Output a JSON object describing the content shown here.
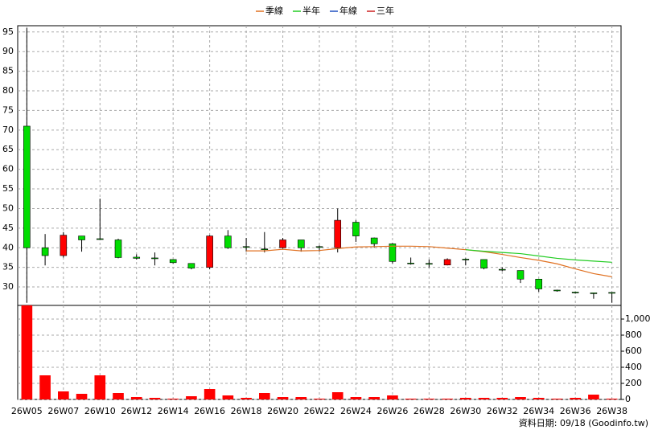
{
  "chart_data": {
    "type": "candlestick",
    "categories": [
      "26W05",
      null,
      "26W07",
      null,
      "26W10",
      null,
      "26W12",
      null,
      "26W14",
      null,
      "26W16",
      null,
      "26W18",
      null,
      "26W20",
      null,
      "26W22",
      null,
      "26W24",
      null,
      "26W26",
      null,
      "26W28",
      null,
      "26W30",
      null,
      "26W32",
      null,
      "26W34",
      null,
      "26W36",
      null,
      "26W38"
    ],
    "open": [
      71,
      40,
      38,
      43,
      42.3,
      42,
      37.6,
      37.4,
      37,
      36,
      35,
      43,
      40.3,
      39.7,
      40,
      42,
      40.3,
      40,
      46.5,
      42.5,
      41,
      36.1,
      36,
      35.6,
      37.1,
      37,
      34.5,
      34.2,
      32,
      29.2,
      28.7,
      28.5,
      28.6
    ],
    "high": [
      96,
      43.5,
      44,
      43,
      52.5,
      42.3,
      38.3,
      38.8,
      37,
      36,
      43.2,
      44.5,
      42.5,
      44,
      42.5,
      42,
      40.6,
      50,
      47,
      42.6,
      41.2,
      37.5,
      37,
      37.3,
      37.3,
      37,
      35,
      34.2,
      32,
      29.3,
      28.7,
      28.5,
      28.6
    ],
    "low": [
      26,
      35.5,
      37.5,
      39,
      42,
      37.3,
      37,
      35.5,
      36,
      34.5,
      34.5,
      39.7,
      39,
      38.8,
      39.8,
      39,
      39,
      38.8,
      41.5,
      40,
      36,
      35.7,
      35,
      35.5,
      35.5,
      34.5,
      34,
      31,
      28.8,
      28.8,
      28.3,
      27,
      26
    ],
    "close": [
      40,
      38,
      43.2,
      42,
      42.2,
      37.5,
      37.3,
      37.3,
      36.2,
      34.8,
      43,
      40,
      40.2,
      39.6,
      42,
      40,
      40.2,
      47,
      43,
      41,
      36.5,
      36,
      35.9,
      37,
      37,
      34.8,
      34.4,
      32,
      29.5,
      29,
      28.6,
      28.4,
      28.5
    ],
    "up_color": "#ff0000",
    "down_color": "#00dd00",
    "series": [
      {
        "name": "季線",
        "color": "#e07020",
        "values": [
          null,
          null,
          null,
          null,
          null,
          null,
          null,
          null,
          null,
          null,
          null,
          null,
          39.2,
          39.2,
          39.6,
          39.2,
          39.3,
          39.8,
          40.2,
          40.3,
          40.4,
          40.4,
          40.3,
          39.9,
          39.5,
          39.0,
          38.3,
          37.5,
          36.8,
          35.9,
          34.6,
          33.4,
          32.6
        ]
      },
      {
        "name": "半年",
        "color": "#22cc22",
        "values": [
          null,
          null,
          null,
          null,
          null,
          null,
          null,
          null,
          null,
          null,
          null,
          null,
          null,
          null,
          null,
          null,
          null,
          null,
          null,
          null,
          null,
          null,
          null,
          null,
          39.5,
          39.1,
          38.8,
          38.5,
          37.9,
          37.3,
          36.9,
          36.6,
          36.3
        ]
      },
      {
        "name": "年線",
        "color": "#2050c0",
        "values": [
          null,
          null,
          null,
          null,
          null,
          null,
          null,
          null,
          null,
          null,
          null,
          null,
          null,
          null,
          null,
          null,
          null,
          null,
          null,
          null,
          null,
          null,
          null,
          null,
          null,
          null,
          null,
          null,
          null,
          null,
          null,
          null,
          null
        ]
      },
      {
        "name": "三年",
        "color": "#cc2020",
        "values": [
          null,
          null,
          null,
          null,
          null,
          null,
          null,
          null,
          null,
          null,
          null,
          null,
          null,
          null,
          null,
          null,
          null,
          null,
          null,
          null,
          null,
          null,
          null,
          null,
          null,
          null,
          null,
          null,
          null,
          null,
          null,
          null,
          null
        ]
      }
    ],
    "ylim": [
      25.3,
      96.6
    ],
    "yticks": [
      30,
      35,
      40,
      45,
      50,
      55,
      60,
      65,
      70,
      75,
      80,
      85,
      90,
      95
    ],
    "volume": {
      "values": [
        1170,
        300,
        100,
        70,
        300,
        80,
        30,
        20,
        10,
        40,
        130,
        50,
        20,
        80,
        30,
        30,
        10,
        90,
        30,
        30,
        50,
        10,
        10,
        10,
        20,
        20,
        20,
        30,
        20,
        10,
        20,
        60,
        10
      ],
      "color": "#ff0000"
    },
    "y2lim": [
      0,
      1170
    ],
    "y2ticks": [
      0,
      200,
      400,
      600,
      800,
      {
        "value": 1000,
        "label": "1,000"
      }
    ],
    "grid": true,
    "footer": "資料日期: 09/18  (Goodinfo.tw)"
  }
}
